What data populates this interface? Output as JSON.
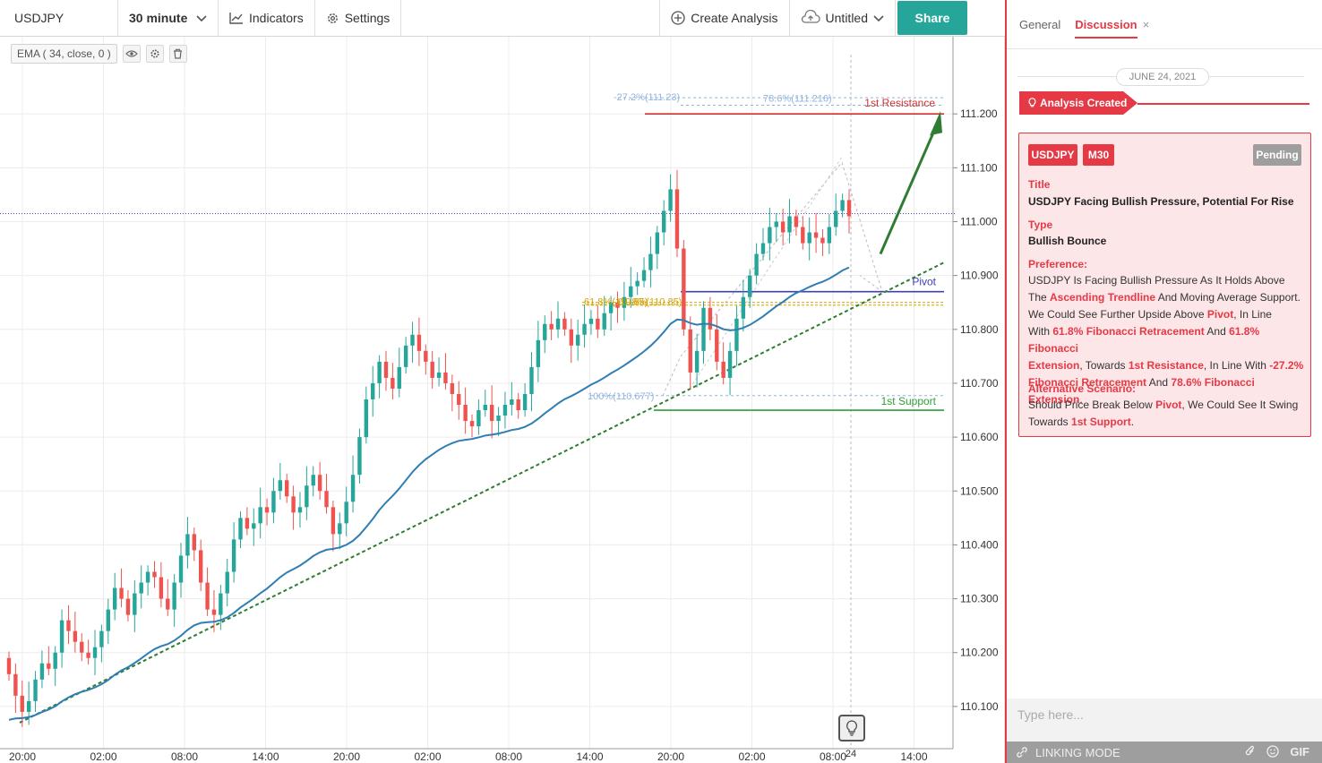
{
  "toolbar": {
    "symbol": "USDJPY",
    "interval": "30 minute",
    "indicators": "Indicators",
    "settings": "Settings",
    "create_analysis": "Create Analysis",
    "layout_name": "Untitled",
    "share": "Share"
  },
  "legend": {
    "ema": "EMA ( 34, close, 0 )"
  },
  "annotations": {
    "resistance": "1st Resistance",
    "support": "1st Support",
    "pivot": "Pivot",
    "fib_ext": "-27.2%(111.23)",
    "fib_ext2": "78.6%(111.216)",
    "fib_100": "100%(110.677)",
    "fib_618": "61.8%(110.85)",
    "fib_618b": "61.8%(110.85)"
  },
  "chart_data": {
    "type": "candlestick",
    "symbol": "USDJPY",
    "interval": "30 minute",
    "y_ticks": [
      "111.200",
      "111.100",
      "111.000",
      "110.900",
      "110.800",
      "110.700",
      "110.600",
      "110.500",
      "110.400",
      "110.300",
      "110.200",
      "110.100"
    ],
    "x_ticks": [
      "20:00",
      "02:00",
      "08:00",
      "14:00",
      "20:00",
      "02:00",
      "08:00",
      "14:00",
      "20:00",
      "02:00",
      "08:00",
      "14:00"
    ],
    "x_marker": "24",
    "ylim": [
      110.03,
      111.31
    ],
    "levels": {
      "resistance": 111.2,
      "support": 110.65,
      "pivot": 110.87,
      "fib_618": 110.85,
      "fib_100": 110.677,
      "fib_ext": 111.23,
      "fib_ext2": 111.216,
      "current": 111.015
    },
    "ema_period": 34,
    "closes": [
      110.16,
      110.12,
      110.09,
      110.11,
      110.15,
      110.18,
      110.17,
      110.2,
      110.26,
      110.24,
      110.22,
      110.2,
      110.19,
      110.21,
      110.24,
      110.28,
      110.32,
      110.3,
      110.27,
      110.31,
      110.33,
      110.35,
      110.34,
      110.3,
      110.28,
      110.33,
      110.38,
      110.42,
      110.39,
      110.33,
      110.28,
      110.27,
      110.31,
      110.35,
      110.41,
      110.45,
      110.43,
      110.44,
      110.47,
      110.46,
      110.5,
      110.52,
      110.49,
      110.46,
      110.47,
      110.51,
      110.53,
      110.5,
      110.47,
      110.42,
      110.44,
      110.48,
      110.53,
      110.6,
      110.67,
      110.7,
      110.74,
      110.71,
      110.69,
      110.73,
      110.77,
      110.79,
      110.76,
      110.74,
      110.71,
      110.72,
      110.7,
      110.68,
      110.66,
      110.63,
      110.62,
      110.65,
      110.66,
      110.63,
      110.64,
      110.66,
      110.67,
      110.65,
      110.68,
      110.73,
      110.78,
      110.81,
      110.8,
      110.82,
      110.8,
      110.77,
      110.79,
      110.81,
      110.82,
      110.8,
      110.83,
      110.85,
      110.84,
      110.86,
      110.88,
      110.89,
      110.91,
      110.94,
      110.98,
      111.02,
      111.06,
      110.95,
      110.8,
      110.72,
      110.76,
      110.84,
      110.8,
      110.74,
      110.71,
      110.76,
      110.82,
      110.86,
      110.9,
      110.94,
      110.96,
      110.99,
      111.0,
      110.98,
      111.01,
      110.99,
      110.96,
      110.98,
      110.97,
      110.96,
      110.99,
      111.02,
      111.04,
      111.01
    ]
  },
  "panel": {
    "tab_general": "General",
    "tab_discussion": "Discussion",
    "date": "JUNE 24, 2021",
    "analysis_created": "Analysis Created",
    "badge_symbol": "USDJPY",
    "badge_tf": "M30",
    "status": "Pending",
    "title_label": "Title",
    "title_value": "USDJPY Facing Bullish Pressure, Potential For Rise",
    "type_label": "Type",
    "type_value": "Bullish Bounce",
    "preference_label": "Preference:",
    "preference_text": [
      "USDJPY Is Facing Bullish Pressure As It Holds Above",
      "The ",
      "Ascending Trendline",
      " And Moving Average Support.",
      "We Could See Further Upside Above ",
      "Pivot",
      ", In Line",
      "With ",
      "61.8% Fibonacci Retracement",
      " And ",
      "61.8% Fibonacci",
      "Extension",
      ", Towards ",
      "1st Resistance",
      ", In Line With ",
      "-27.2%",
      "Fibonacci Retracement",
      " And ",
      "78.6% Fibonacci Extension",
      "."
    ],
    "alt_label": "Alternative Scenario:",
    "alt_text": [
      "Should Price Break Below ",
      "Pivot",
      ", We Could See It Swing",
      "Towards ",
      "1st Support",
      "."
    ],
    "message_placeholder": "Type here...",
    "linking_mode": "LINKING MODE",
    "gif": "GIF"
  },
  "colors": {
    "bull": "#26a69a",
    "bear": "#ef5350",
    "ema": "#2f7eb1",
    "trend": "#2e7d32",
    "accent": "#e53945"
  }
}
